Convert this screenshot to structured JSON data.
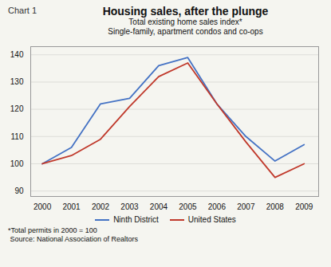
{
  "chart_data": {
    "type": "line",
    "title": "Housing sales, after the plunge",
    "subtitle": [
      "Total existing home sales index*",
      "Single-family, apartment condos and co-ops"
    ],
    "annotations": [
      "Chart 1"
    ],
    "footnotes": [
      "*Total permits in 2000 = 100",
      " Source: National Association of Realtors"
    ],
    "x": [
      2000,
      2001,
      2002,
      2003,
      2004,
      2005,
      2006,
      2007,
      2008,
      2009
    ],
    "series": [
      {
        "name": "Ninth District",
        "color": "#4472c4",
        "values": [
          100,
          106,
          122,
          124,
          136,
          139,
          122,
          110,
          101,
          107
        ]
      },
      {
        "name": "United States",
        "color": "#c0392b",
        "values": [
          100,
          103,
          109,
          121,
          132,
          137,
          122,
          108,
          95,
          100
        ]
      }
    ],
    "xlim": [
      1999.6,
      2009.5
    ],
    "xticks": [
      2000,
      2001,
      2002,
      2003,
      2004,
      2005,
      2006,
      2007,
      2008,
      2009
    ],
    "ylim": [
      88,
      143
    ],
    "yticks": [
      90,
      100,
      110,
      120,
      130,
      140
    ],
    "grid": true,
    "legend": "bottom"
  }
}
